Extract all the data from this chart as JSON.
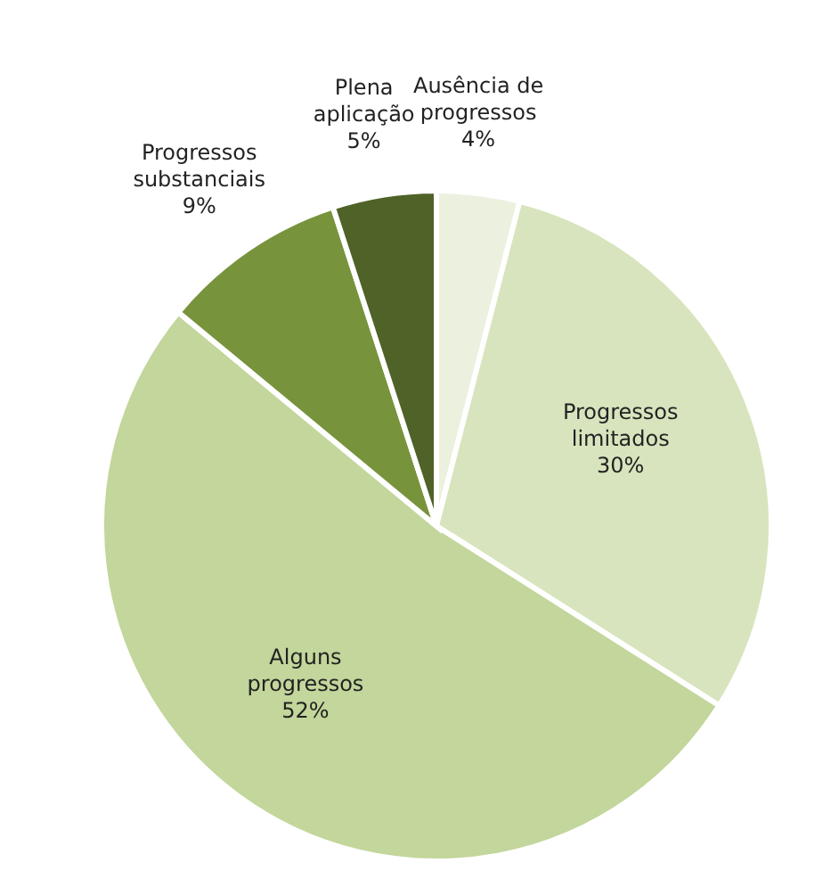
{
  "chart_data": {
    "type": "pie",
    "categories": [
      "Ausência de progressos",
      "Progressos limitados",
      "Alguns progressos",
      "Progressos substanciais",
      "Plena aplicação"
    ],
    "values": [
      4,
      30,
      52,
      9,
      5
    ],
    "colors": [
      "#ebf1de",
      "#d7e4bd",
      "#c3d69b",
      "#77933c",
      "#4f6228"
    ],
    "value_labels": [
      "4%",
      "30%",
      "52%",
      "9%",
      "5%"
    ],
    "legend": false
  }
}
